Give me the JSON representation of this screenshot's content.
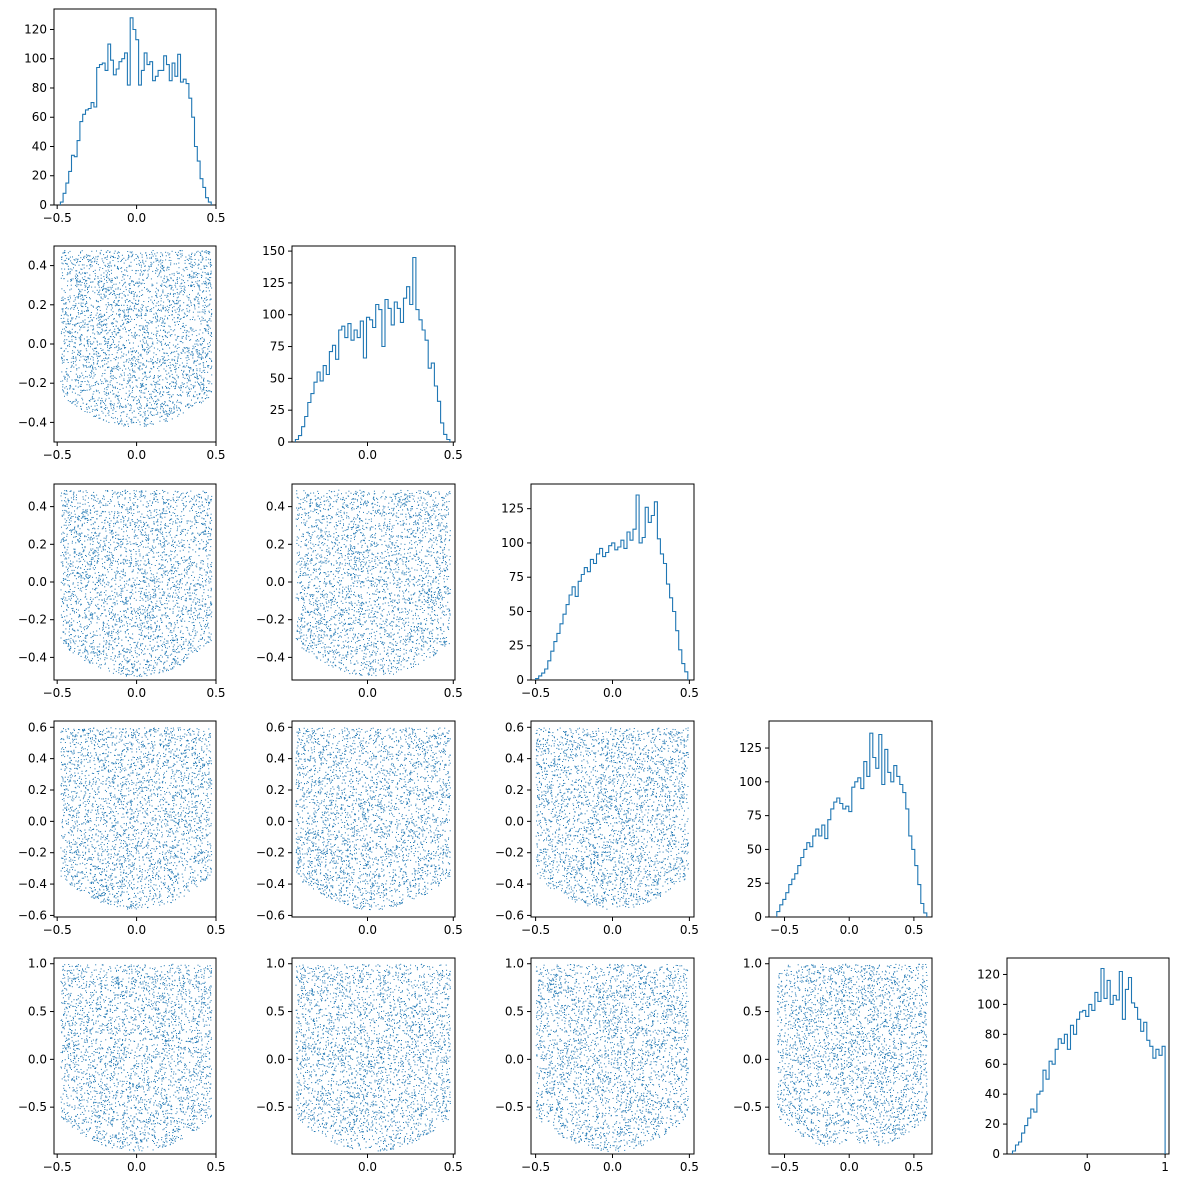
{
  "chart_data": {
    "type": "corner",
    "description_of_layout": "lower-triangular matrix of panels; diagonal panels are step histograms, off-diagonal panels are scatter plots",
    "dimensions": 5,
    "color": "#1f77b4",
    "diagonal_histograms": [
      {
        "type": "histogram",
        "xlim": [
          -0.52,
          0.5
        ],
        "ylim": [
          0,
          134
        ],
        "xticks": [
          -0.5,
          0.0,
          0.5
        ],
        "xticklabels": [
          "−0.5",
          "0.0",
          "0.5"
        ],
        "yticks": [
          0,
          20,
          40,
          60,
          80,
          100,
          120
        ],
        "yticklabels": [
          "0",
          "20",
          "40",
          "60",
          "80",
          "100",
          "120"
        ],
        "bins": [
          -0.48,
          0.47
        ],
        "counts": [
          2,
          8,
          15,
          23,
          34,
          33,
          44,
          57,
          62,
          65,
          66,
          70,
          67,
          94,
          96,
          97,
          92,
          110,
          99,
          89,
          93,
          98,
          100,
          104,
          82,
          128,
          120,
          113,
          82,
          92,
          104,
          96,
          98,
          85,
          88,
          92,
          92,
          102,
          96,
          85,
          97,
          88,
          103,
          84,
          86,
          83,
          73,
          60,
          40,
          30,
          18,
          12,
          5,
          2
        ]
      },
      {
        "type": "histogram",
        "xlim": [
          -0.44,
          0.51
        ],
        "ylim": [
          0,
          154
        ],
        "xticks": [
          0.0,
          0.5
        ],
        "xticklabels": [
          "0.0",
          "0.5"
        ],
        "yticks": [
          0,
          25,
          50,
          75,
          100,
          125,
          150
        ],
        "yticklabels": [
          "0",
          "25",
          "50",
          "75",
          "100",
          "125",
          "150"
        ],
        "bins": [
          -0.42,
          0.48
        ],
        "counts": [
          2,
          5,
          12,
          20,
          31,
          38,
          47,
          55,
          48,
          60,
          53,
          71,
          76,
          65,
          88,
          91,
          82,
          93,
          80,
          88,
          82,
          95,
          66,
          98,
          96,
          90,
          108,
          104,
          75,
          112,
          105,
          92,
          110,
          105,
          94,
          113,
          122,
          108,
          145,
          104,
          96,
          88,
          80,
          58,
          62,
          44,
          32,
          15,
          6,
          2
        ]
      },
      {
        "type": "histogram",
        "xlim": [
          -0.53,
          0.53
        ],
        "ylim": [
          0,
          143
        ],
        "xticks": [
          -0.5,
          0.0,
          0.5
        ],
        "xticklabels": [
          "−0.5",
          "0.0",
          "0.5"
        ],
        "yticks": [
          0,
          25,
          50,
          75,
          100,
          125
        ],
        "yticklabels": [
          "0",
          "25",
          "50",
          "75",
          "100",
          "125"
        ],
        "bins": [
          -0.5,
          0.49
        ],
        "counts": [
          1,
          3,
          5,
          8,
          14,
          21,
          28,
          34,
          41,
          48,
          55,
          62,
          68,
          61,
          72,
          77,
          82,
          79,
          88,
          85,
          92,
          96,
          90,
          93,
          98,
          100,
          95,
          97,
          102,
          96,
          108,
          102,
          110,
          135,
          100,
          104,
          126,
          115,
          120,
          130,
          103,
          92,
          85,
          70,
          60,
          50,
          36,
          22,
          12,
          6
        ]
      },
      {
        "type": "histogram",
        "xlim": [
          -0.62,
          0.64
        ],
        "ylim": [
          0,
          145
        ],
        "xticks": [
          -0.5,
          0.0,
          0.5
        ],
        "xticklabels": [
          "−0.5",
          "0.0",
          "0.5"
        ],
        "yticks": [
          0,
          25,
          50,
          75,
          100,
          125
        ],
        "yticklabels": [
          "0",
          "25",
          "50",
          "75",
          "100",
          "125"
        ],
        "bins": [
          -0.56,
          0.6
        ],
        "counts": [
          4,
          9,
          13,
          18,
          24,
          28,
          32,
          38,
          44,
          50,
          55,
          52,
          60,
          65,
          60,
          68,
          58,
          72,
          80,
          85,
          88,
          84,
          80,
          82,
          78,
          96,
          100,
          103,
          95,
          115,
          104,
          136,
          118,
          110,
          135,
          98,
          124,
          107,
          100,
          112,
          104,
          98,
          92,
          80,
          60,
          50,
          38,
          24,
          10,
          3
        ]
      },
      {
        "type": "histogram",
        "xlim": [
          -1.03,
          1.05
        ],
        "ylim": [
          0,
          131
        ],
        "xticks": [
          0,
          1
        ],
        "xticklabels": [
          "0",
          "1"
        ],
        "yticks": [
          0,
          20,
          40,
          60,
          80,
          100,
          120
        ],
        "yticklabels": [
          "0",
          "20",
          "40",
          "60",
          "80",
          "100",
          "120"
        ],
        "bins": [
          -0.96,
          1.0
        ],
        "counts": [
          2,
          6,
          8,
          14,
          19,
          24,
          30,
          28,
          40,
          42,
          56,
          50,
          62,
          60,
          70,
          77,
          74,
          80,
          70,
          86,
          80,
          90,
          95,
          96,
          92,
          100,
          96,
          108,
          102,
          124,
          104,
          116,
          100,
          106,
          103,
          122,
          90,
          110,
          118,
          101,
          98,
          90,
          82,
          88,
          76,
          72,
          64,
          70,
          66,
          72
        ]
      }
    ],
    "scatter_panels": [
      {
        "row": 2,
        "col": 1,
        "xlim": [
          -0.52,
          0.5
        ],
        "ylim": [
          -0.5,
          0.5
        ],
        "xticks": [
          -0.5,
          0.0,
          0.5
        ],
        "xticklabels": [
          "−0.5",
          "0.0",
          "0.5"
        ],
        "yticks": [
          -0.4,
          -0.2,
          0.0,
          0.2,
          0.4
        ],
        "yticklabels": [
          "−0.4",
          "−0.2",
          "0.0",
          "0.2",
          "0.4"
        ]
      },
      {
        "row": 3,
        "col": 1,
        "xlim": [
          -0.52,
          0.5
        ],
        "ylim": [
          -0.52,
          0.52
        ],
        "xticks": [
          -0.5,
          0.0,
          0.5
        ],
        "xticklabels": [
          "−0.5",
          "0.0",
          "0.5"
        ],
        "yticks": [
          -0.4,
          -0.2,
          0.0,
          0.2,
          0.4
        ],
        "yticklabels": [
          "−0.4",
          "−0.2",
          "0.0",
          "0.2",
          "0.4"
        ]
      },
      {
        "row": 3,
        "col": 2,
        "xlim": [
          -0.44,
          0.51
        ],
        "ylim": [
          -0.52,
          0.52
        ],
        "xticks": [
          0.0,
          0.5
        ],
        "xticklabels": [
          "0.0",
          "0.5"
        ],
        "yticks": [
          -0.4,
          -0.2,
          0.0,
          0.2,
          0.4
        ],
        "yticklabels": [
          "−0.4",
          "−0.2",
          "0.0",
          "0.2",
          "0.4"
        ]
      },
      {
        "row": 4,
        "col": 1,
        "xlim": [
          -0.52,
          0.5
        ],
        "ylim": [
          -0.61,
          0.64
        ],
        "xticks": [
          -0.5,
          0.0,
          0.5
        ],
        "xticklabels": [
          "−0.5",
          "0.0",
          "0.5"
        ],
        "yticks": [
          -0.6,
          -0.4,
          -0.2,
          0.0,
          0.2,
          0.4,
          0.6
        ],
        "yticklabels": [
          "−0.6",
          "−0.4",
          "−0.2",
          "0.0",
          "0.2",
          "0.4",
          "0.6"
        ]
      },
      {
        "row": 4,
        "col": 2,
        "xlim": [
          -0.44,
          0.51
        ],
        "ylim": [
          -0.61,
          0.64
        ],
        "xticks": [
          0.0,
          0.5
        ],
        "xticklabels": [
          "0.0",
          "0.5"
        ],
        "yticks": [
          -0.6,
          -0.4,
          -0.2,
          0.0,
          0.2,
          0.4,
          0.6
        ],
        "yticklabels": [
          "−0.6",
          "−0.4",
          "−0.2",
          "0.0",
          "0.2",
          "0.4",
          "0.6"
        ]
      },
      {
        "row": 4,
        "col": 3,
        "xlim": [
          -0.53,
          0.53
        ],
        "ylim": [
          -0.61,
          0.64
        ],
        "xticks": [
          -0.5,
          0.0,
          0.5
        ],
        "xticklabels": [
          "−0.5",
          "0.0",
          "0.5"
        ],
        "yticks": [
          -0.6,
          -0.4,
          -0.2,
          0.0,
          0.2,
          0.4,
          0.6
        ],
        "yticklabels": [
          "−0.6",
          "−0.4",
          "−0.2",
          "0.0",
          "0.2",
          "0.4",
          "0.6"
        ]
      },
      {
        "row": 5,
        "col": 1,
        "xlim": [
          -0.52,
          0.5
        ],
        "ylim": [
          -0.99,
          1.06
        ],
        "xticks": [
          -0.5,
          0.0,
          0.5
        ],
        "xticklabels": [
          "−0.5",
          "0.0",
          "0.5"
        ],
        "yticks": [
          -0.5,
          0.0,
          0.5,
          1.0
        ],
        "yticklabels": [
          "−0.5",
          "0.0",
          "0.5",
          "1.0"
        ]
      },
      {
        "row": 5,
        "col": 2,
        "xlim": [
          -0.44,
          0.51
        ],
        "ylim": [
          -0.99,
          1.06
        ],
        "xticks": [
          0.0,
          0.5
        ],
        "xticklabels": [
          "0.0",
          "0.5"
        ],
        "yticks": [
          -0.5,
          0.0,
          0.5,
          1.0
        ],
        "yticklabels": [
          "−0.5",
          "0.0",
          "0.5",
          "1.0"
        ]
      },
      {
        "row": 5,
        "col": 3,
        "xlim": [
          -0.53,
          0.53
        ],
        "ylim": [
          -0.99,
          1.06
        ],
        "xticks": [
          -0.5,
          0.0,
          0.5
        ],
        "xticklabels": [
          "−0.5",
          "0.0",
          "0.5"
        ],
        "yticks": [
          -0.5,
          0.0,
          0.5,
          1.0
        ],
        "yticklabels": [
          "−0.5",
          "0.0",
          "0.5",
          "1.0"
        ]
      },
      {
        "row": 5,
        "col": 4,
        "xlim": [
          -0.62,
          0.64
        ],
        "ylim": [
          -0.99,
          1.06
        ],
        "xticks": [
          -0.5,
          0.0,
          0.5
        ],
        "xticklabels": [
          "−0.5",
          "0.0",
          "0.5"
        ],
        "yticks": [
          -0.5,
          0.0,
          0.5,
          1.0
        ],
        "yticklabels": [
          "−0.5",
          "0.0",
          "0.5",
          "1.0"
        ]
      }
    ]
  }
}
